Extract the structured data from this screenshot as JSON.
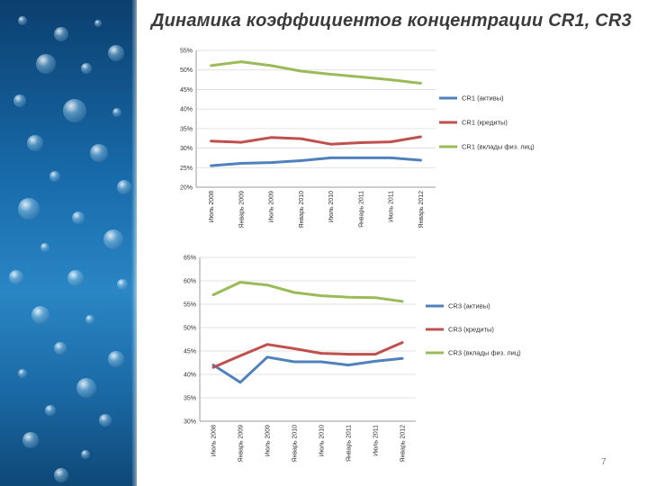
{
  "slide": {
    "title": "Динамика коэффициентов концентрации CR1, CR3",
    "page_number": "7"
  },
  "colors": {
    "series_assets": "#4f81bd",
    "series_credits": "#c0504d",
    "series_deposits": "#9bbb59",
    "grid": "#d9d9d9"
  },
  "chart_data": [
    {
      "type": "line",
      "categories": [
        "Июль 2008",
        "Январь 2009",
        "Июль 2009",
        "Январь 2010",
        "Июль 2010",
        "Январь 2011",
        "Июль 2011",
        "Январь 2012"
      ],
      "ylim": [
        0.2,
        0.55
      ],
      "ytick_labels": [
        "20%",
        "25%",
        "30%",
        "35%",
        "40%",
        "45%",
        "50%",
        "55%"
      ],
      "legend_position": "right",
      "series": [
        {
          "name": "CR1 (активы)",
          "color_key": "series_assets",
          "values": [
            0.255,
            0.261,
            0.263,
            0.268,
            0.275,
            0.275,
            0.275,
            0.269
          ]
        },
        {
          "name": "CR1 (кредиты)",
          "color_key": "series_credits",
          "values": [
            0.318,
            0.315,
            0.327,
            0.324,
            0.31,
            0.314,
            0.316,
            0.329
          ]
        },
        {
          "name": "CR1 (вклады физ. лиц)",
          "color_key": "series_deposits",
          "values": [
            0.511,
            0.521,
            0.511,
            0.497,
            0.489,
            0.482,
            0.475,
            0.466
          ]
        }
      ]
    },
    {
      "type": "line",
      "categories": [
        "Июль 2008",
        "Январь 2009",
        "Июль 2009",
        "Январь 2010",
        "Июль 2010",
        "Январь 2011",
        "Июль 2011",
        "Январь 2012"
      ],
      "ylim": [
        0.3,
        0.65
      ],
      "ytick_labels": [
        "30%",
        "35%",
        "40%",
        "45%",
        "50%",
        "55%",
        "60%",
        "65%"
      ],
      "legend_position": "right",
      "series": [
        {
          "name": "CR3 (активы)",
          "color_key": "series_assets",
          "values": [
            0.42,
            0.383,
            0.437,
            0.427,
            0.427,
            0.42,
            0.428,
            0.434
          ]
        },
        {
          "name": "CR3 (кредиты)",
          "color_key": "series_credits",
          "values": [
            0.415,
            0.44,
            0.464,
            0.455,
            0.445,
            0.443,
            0.443,
            0.468
          ]
        },
        {
          "name": "CR3 (вклады физ. лиц)",
          "color_key": "series_deposits",
          "values": [
            0.57,
            0.597,
            0.591,
            0.575,
            0.568,
            0.565,
            0.564,
            0.556
          ]
        }
      ]
    }
  ]
}
